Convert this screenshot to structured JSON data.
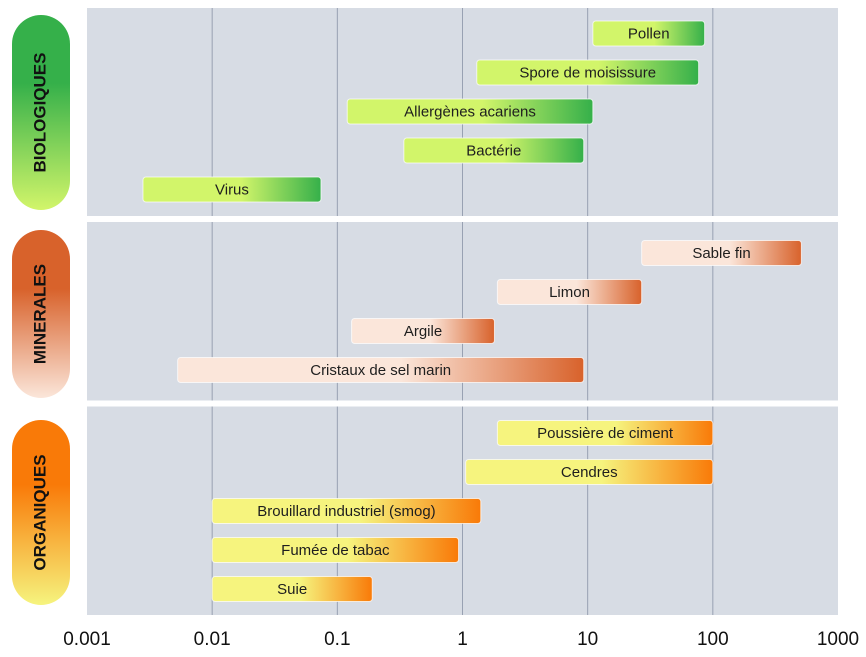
{
  "chart_data": {
    "type": "range-bar",
    "log": true,
    "grid": true,
    "xlim": [
      0.001,
      1000
    ],
    "xticks": [
      0.001,
      0.01,
      0.1,
      1,
      10,
      100,
      1000
    ],
    "groups": [
      {
        "name": "BIOLOGIQUES",
        "colors": [
          "#d2f56a",
          "#35b04a"
        ],
        "bars": [
          {
            "label": "Pollen",
            "start": 11,
            "end": 86
          },
          {
            "label": "Spore de moisissure",
            "start": 1.3,
            "end": 77
          },
          {
            "label": "Allergènes acariens",
            "start": 0.12,
            "end": 11
          },
          {
            "label": "Bactérie",
            "start": 0.34,
            "end": 9.3
          },
          {
            "label": "Virus",
            "start": 0.0028,
            "end": 0.074
          }
        ]
      },
      {
        "name": "MINERALES",
        "colors": [
          "#fbe6da",
          "#d8622b"
        ],
        "bars": [
          {
            "label": "Sable fin",
            "start": 27,
            "end": 510
          },
          {
            "label": "Limon",
            "start": 1.9,
            "end": 27
          },
          {
            "label": "Argile",
            "start": 0.13,
            "end": 1.8
          },
          {
            "label": "Cristaux de sel marin",
            "start": 0.0053,
            "end": 9.3
          }
        ]
      },
      {
        "name": "ORGANIQUES",
        "colors": [
          "#f6f47e",
          "#f97a08"
        ],
        "bars": [
          {
            "label": "Poussière de ciment",
            "start": 1.9,
            "end": 100
          },
          {
            "label": "Cendres",
            "start": 1.06,
            "end": 100
          },
          {
            "label": "Brouillard industriel (smog)",
            "start": 0.01,
            "end": 1.4
          },
          {
            "label": "Fumée de tabac",
            "start": 0.01,
            "end": 0.93
          },
          {
            "label": "Suie",
            "start": 0.01,
            "end": 0.19
          }
        ]
      }
    ]
  }
}
